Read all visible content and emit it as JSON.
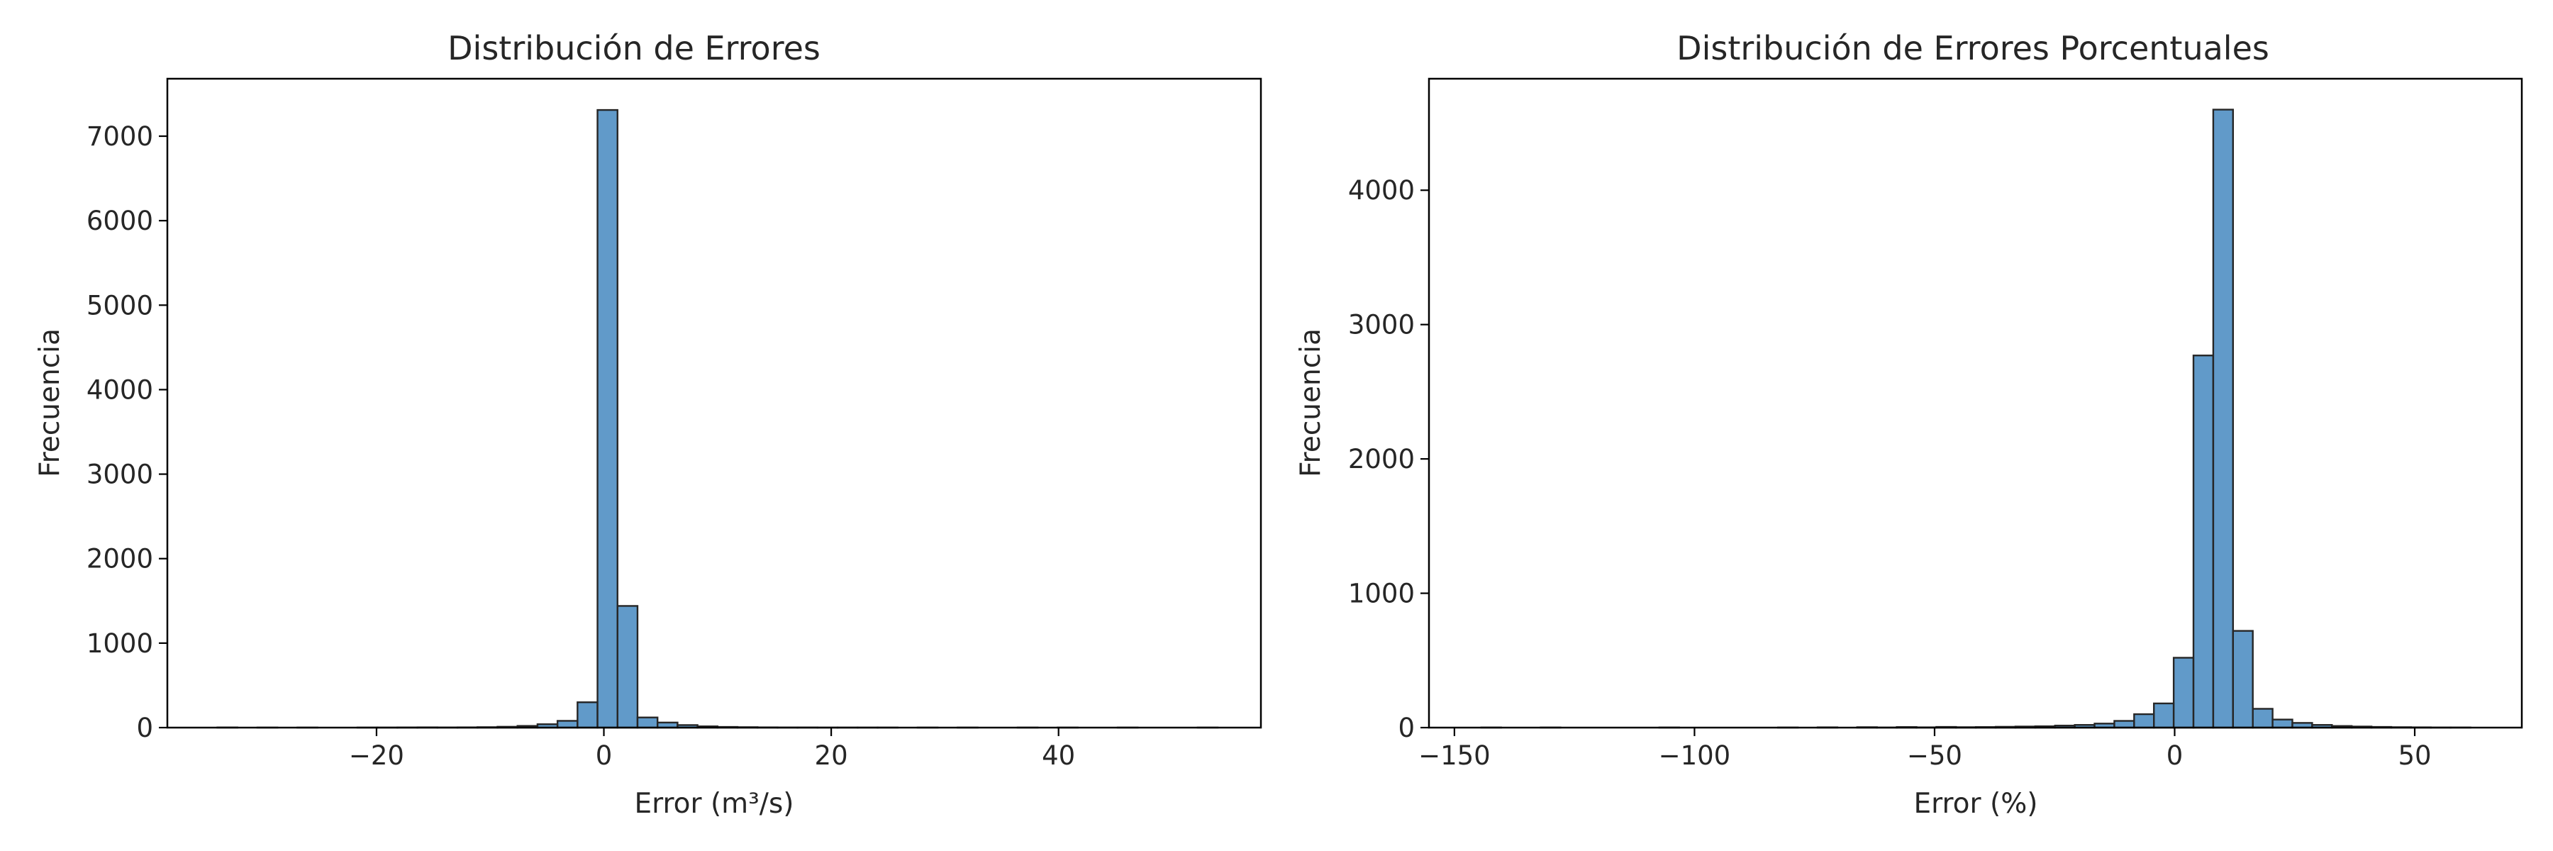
{
  "colors": {
    "bar_fill": "#4b8cc2",
    "bar_stroke": "#262626",
    "axis": "#000000",
    "background": "#ffffff"
  },
  "chart_data": [
    {
      "type": "bar",
      "title": "Distribución de Errores",
      "xlabel": "Error (m³/s)",
      "ylabel": "Frecuencia",
      "xlim": [
        -38.4,
        57.8
      ],
      "ylim": [
        0,
        7680
      ],
      "xticks": [
        -20,
        0,
        20,
        40
      ],
      "xtick_labels": [
        "−20",
        "0",
        "20",
        "40"
      ],
      "yticks": [
        0,
        1000,
        2000,
        3000,
        4000,
        5000,
        6000,
        7000
      ],
      "ytick_labels": [
        "0",
        "1000",
        "2000",
        "3000",
        "4000",
        "5000",
        "6000",
        "7000"
      ],
      "bin_start": -34.0,
      "bin_width": 1.76,
      "values": [
        2,
        0,
        1,
        0,
        1,
        0,
        0,
        1,
        1,
        2,
        3,
        2,
        3,
        5,
        10,
        20,
        40,
        80,
        300,
        7310,
        1440,
        120,
        60,
        30,
        15,
        8,
        5,
        3,
        2,
        2,
        1,
        1,
        1,
        1,
        0,
        1,
        0,
        1,
        0,
        0,
        1,
        0,
        1,
        0,
        0,
        1,
        0,
        0,
        0,
        1
      ]
    },
    {
      "type": "bar",
      "title": "Distribución de Errores Porcentuales",
      "xlabel": "Error (%)",
      "ylabel": "Frecuencia",
      "xlim": [
        -155.3,
        72.3
      ],
      "ylim": [
        0,
        4830
      ],
      "xticks": [
        -150,
        -100,
        -50,
        0,
        50
      ],
      "xtick_labels": [
        "−150",
        "−100",
        "−50",
        "0",
        "50"
      ],
      "yticks": [
        0,
        1000,
        2000,
        3000,
        4000
      ],
      "ytick_labels": [
        "0",
        "1000",
        "2000",
        "3000",
        "4000"
      ],
      "bin_start": -144.4,
      "bin_width": 4.12,
      "values": [
        1,
        0,
        0,
        1,
        0,
        0,
        0,
        0,
        0,
        1,
        0,
        0,
        0,
        0,
        0,
        1,
        0,
        2,
        0,
        3,
        1,
        4,
        2,
        5,
        3,
        4,
        6,
        8,
        10,
        15,
        20,
        30,
        50,
        100,
        180,
        520,
        2770,
        4600,
        720,
        140,
        60,
        35,
        20,
        12,
        8,
        5,
        3,
        2,
        1,
        1,
        0,
        0
      ]
    }
  ]
}
